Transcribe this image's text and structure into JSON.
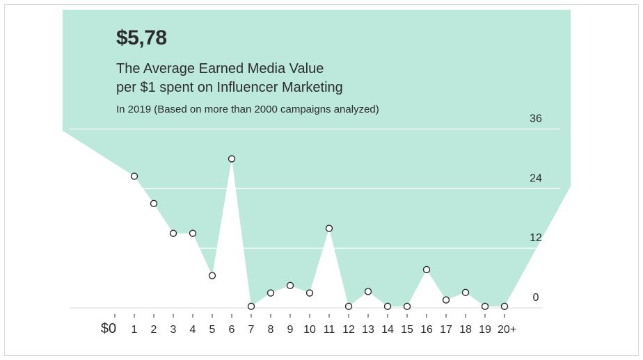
{
  "header": {
    "value": "$5,78",
    "title_line1": "The Average Earned Media Value",
    "title_line2": "per $1 spent on Influencer Marketing",
    "subtitle": "In 2019 (Based on more than 2000 campaigns analyzed)"
  },
  "colors": {
    "area_fill": "#bde9dc",
    "gridline": "#ffffff",
    "axis": "#e0e4e4",
    "text": "#2b2b2b",
    "point_stroke": "#2b2b2b",
    "point_fill": "#ffffff"
  },
  "chart_data": {
    "type": "area",
    "categories": [
      "$0",
      "1",
      "2",
      "3",
      "4",
      "5",
      "6",
      "7",
      "8",
      "9",
      "10",
      "11",
      "12",
      "13",
      "14",
      "15",
      "16",
      "17",
      "18",
      "19",
      "20+"
    ],
    "values": [
      null,
      26.5,
      21,
      15,
      15,
      6.5,
      30,
      0.3,
      3,
      4.5,
      3,
      16,
      0.3,
      3.3,
      0.3,
      0.3,
      7.7,
      1.6,
      3.1,
      0.3,
      0.3
    ],
    "ylim": [
      0,
      36
    ],
    "yticks": [
      "0",
      "12",
      "24",
      "36"
    ],
    "grid": true,
    "xlabel": "",
    "ylabel": ""
  }
}
